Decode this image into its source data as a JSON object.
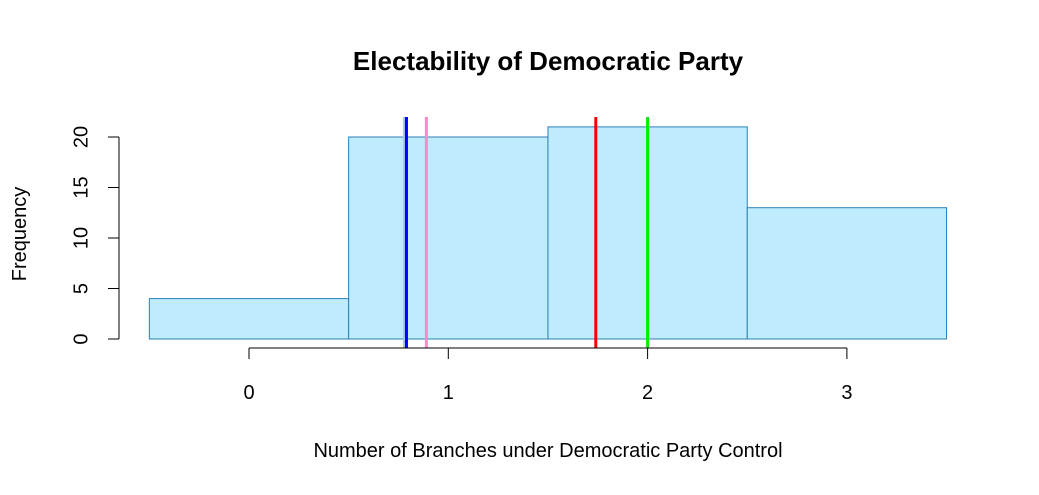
{
  "chart_data": {
    "type": "bar",
    "subtype": "histogram",
    "title": "Electability of Democratic Party",
    "xlabel": "Number of Branches under Democratic Party Control",
    "ylabel": "Frequency",
    "xlim": [
      -0.5,
      3.5
    ],
    "ylim": [
      0,
      22
    ],
    "bins": [
      {
        "from": -0.5,
        "to": 0.5,
        "value": 4
      },
      {
        "from": 0.5,
        "to": 1.5,
        "value": 20
      },
      {
        "from": 1.5,
        "to": 2.5,
        "value": 21
      },
      {
        "from": 2.5,
        "to": 3.5,
        "value": 13
      }
    ],
    "x_ticks": [
      0,
      1,
      2,
      3
    ],
    "x_tick_labels": [
      "0",
      "1",
      "2",
      "3"
    ],
    "y_ticks": [
      0,
      5,
      10,
      15,
      20
    ],
    "y_tick_labels": [
      "0",
      "5",
      "10",
      "15",
      "20"
    ],
    "bar_color": "#bfecfc",
    "bar_edge_color": "#2c7fb8",
    "vertical_lines": [
      {
        "x": 0.78,
        "color": "#a6c8f0"
      },
      {
        "x": 0.79,
        "color": "#0000ff"
      },
      {
        "x": 0.89,
        "color": "#ff88cc"
      },
      {
        "x": 1.74,
        "color": "#ff0000"
      },
      {
        "x": 2.0,
        "color": "#00ee00"
      }
    ],
    "grid": false,
    "legend": "none"
  }
}
